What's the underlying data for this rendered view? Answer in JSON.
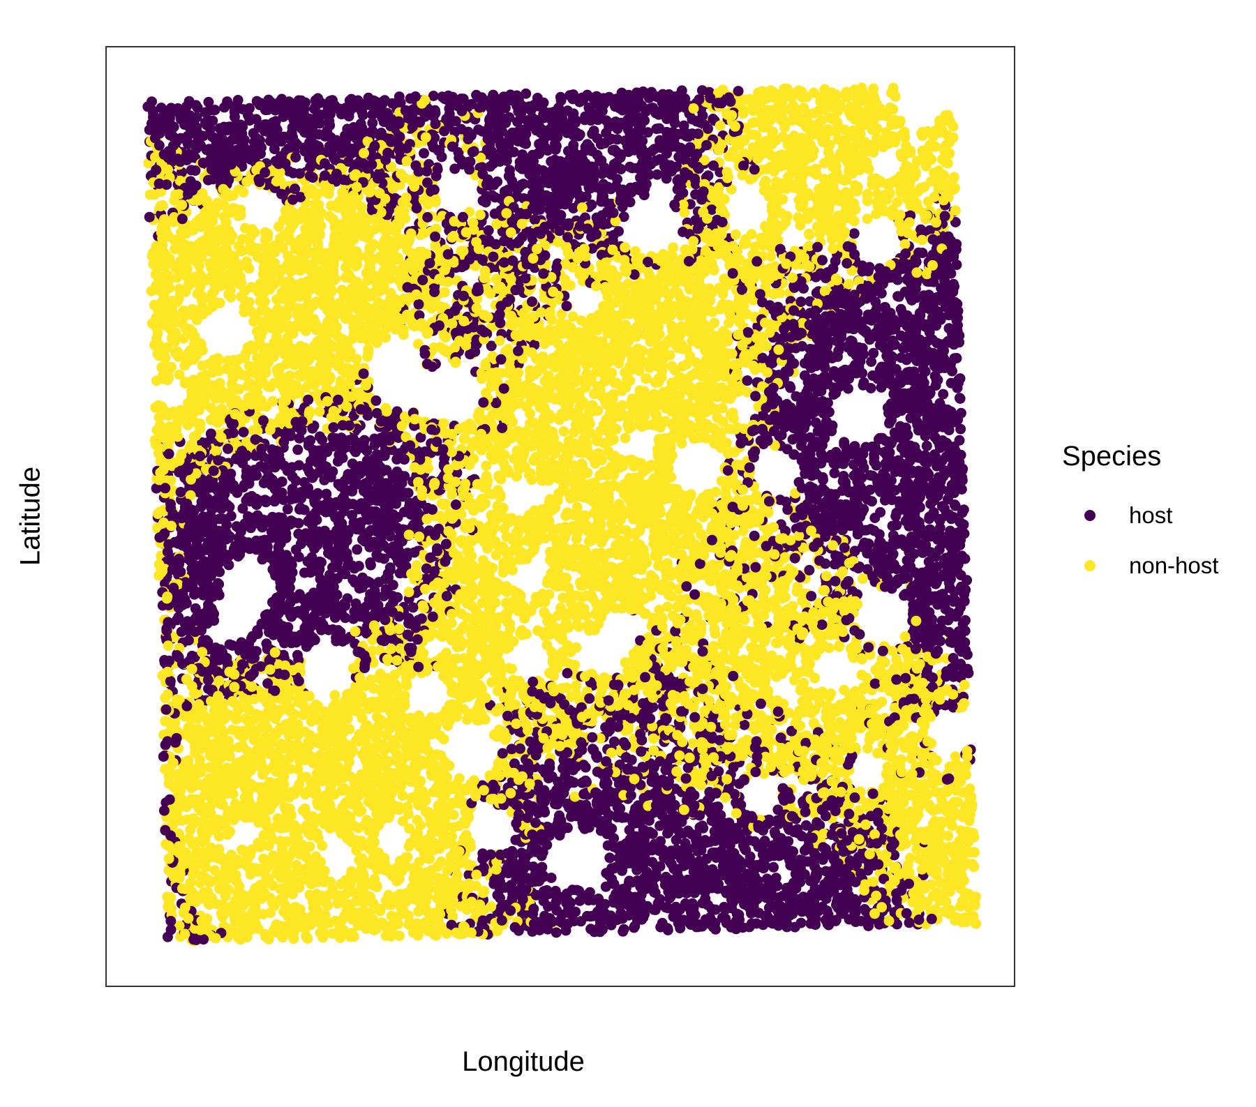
{
  "chart_data": {
    "type": "scatter",
    "xlabel": "Longitude",
    "ylabel": "Latitude",
    "axis_ticks": false,
    "grid": false,
    "legend": {
      "title": "Species",
      "placement": "right"
    },
    "series": [
      {
        "name": "host",
        "color": "#440154"
      },
      {
        "name": "non-host",
        "color": "#FDE725"
      }
    ],
    "n_points_approx": 16000,
    "points_note_values_unlabeled": true
  }
}
